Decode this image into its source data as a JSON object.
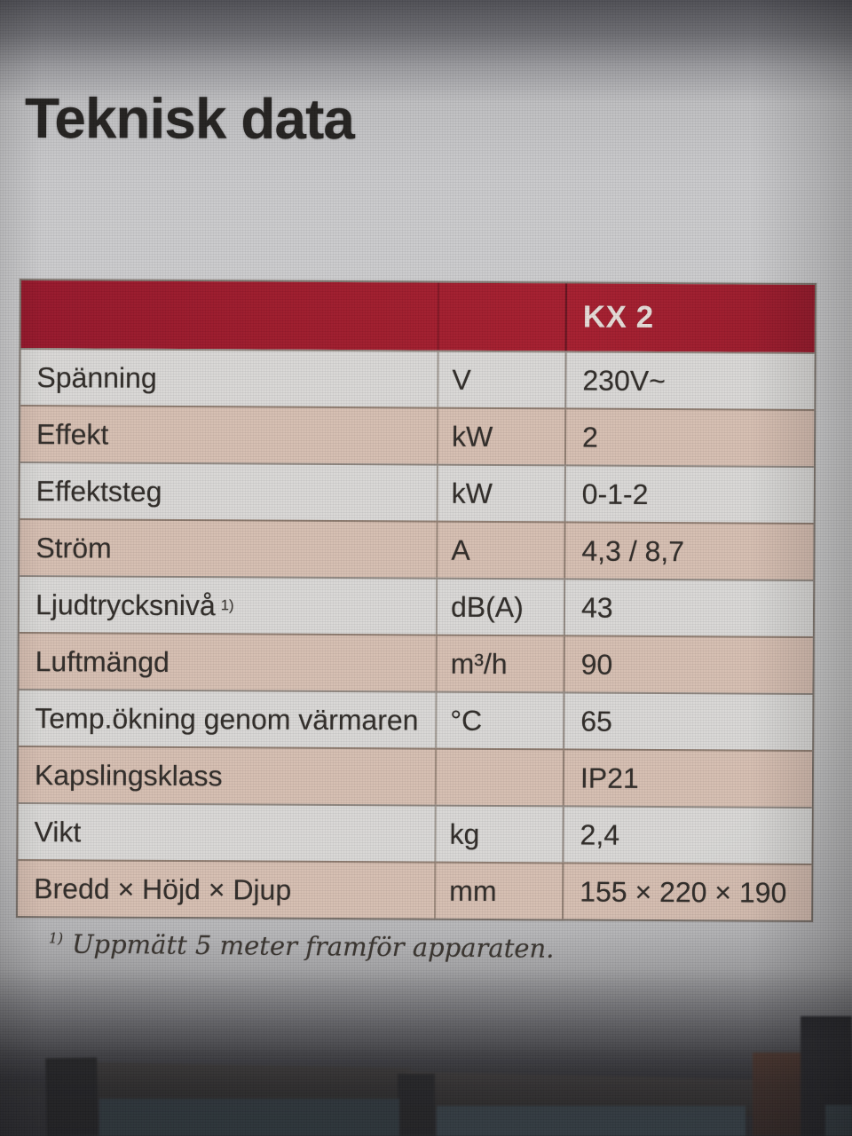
{
  "page": {
    "title": "Teknisk data",
    "footnote": {
      "marker": "1)",
      "text": "Uppmätt 5 meter framför apparaten."
    }
  },
  "table": {
    "product_header": "KX 2",
    "columns": [
      "property",
      "unit",
      "value"
    ],
    "rows": [
      {
        "label": "Spänning",
        "unit": "V",
        "value": "230V~"
      },
      {
        "label": "Effekt",
        "unit": "kW",
        "value": "2"
      },
      {
        "label": "Effektsteg",
        "unit": "kW",
        "value": "0-1-2"
      },
      {
        "label": "Ström",
        "unit": "A",
        "value": "4,3 / 8,7"
      },
      {
        "label": "Ljudtrycksnivå",
        "label_sup": "1)",
        "unit": "dB(A)",
        "value": "43"
      },
      {
        "label": "Luftmängd",
        "unit": "m³/h",
        "value": "90"
      },
      {
        "label": "Temp.ökning genom värmaren",
        "unit": "°C",
        "value": "65"
      },
      {
        "label": "Kapslingsklass",
        "unit": "",
        "value": "IP21"
      },
      {
        "label": "Vikt",
        "unit": "kg",
        "value": "2,4"
      },
      {
        "label": "Bredd × Höjd × Djup",
        "unit": "mm",
        "value": "155 ×  220 × 190"
      }
    ],
    "colors": {
      "header_bg": "#a01b2c",
      "header_text": "#e6dcd8",
      "row_pink": "#d4bcb0",
      "row_light": "#d9d8d6",
      "text": "#302c28"
    }
  }
}
